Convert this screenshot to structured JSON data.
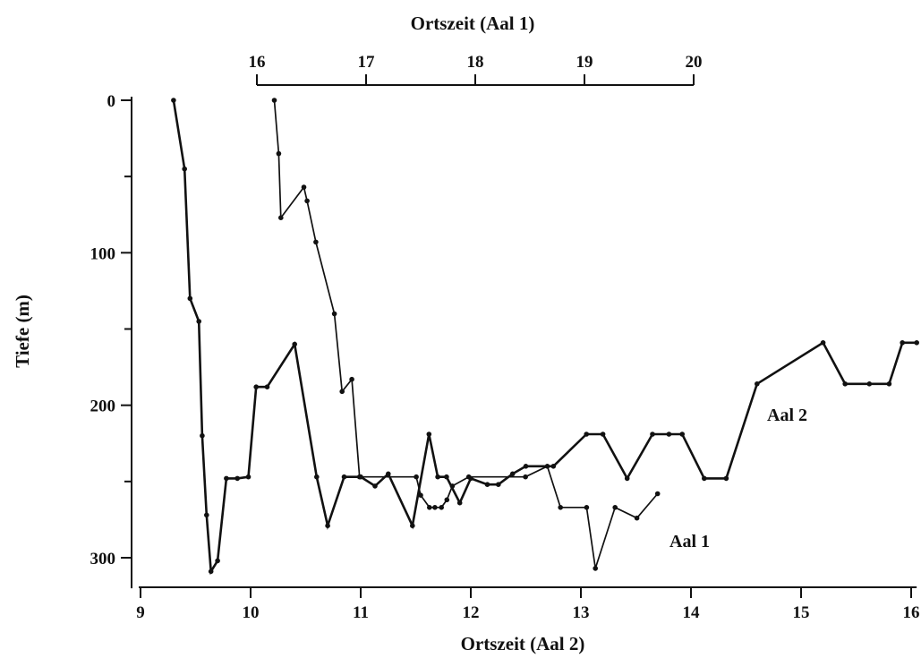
{
  "chart_data": {
    "type": "line",
    "title": "",
    "grid": false,
    "y_axis": {
      "label": "Tiefe (m)",
      "range": [
        0,
        320
      ],
      "inverted": true,
      "ticks": [
        0,
        100,
        200,
        300
      ],
      "tick_labels": [
        "0",
        "100",
        "200",
        "300"
      ]
    },
    "x_axis_bottom": {
      "label": "Ortszeit (Aal 2)",
      "range": [
        9,
        16.05
      ],
      "ticks": [
        9,
        10,
        11,
        12,
        13,
        14,
        15,
        16
      ],
      "tick_labels": [
        "9",
        "10",
        "11",
        "12",
        "13",
        "14",
        "15",
        "16"
      ]
    },
    "x_axis_top": {
      "label": "Ortszeit (Aal 1)",
      "range": [
        16,
        20
      ],
      "ticks": [
        16,
        17,
        18,
        19,
        20
      ],
      "tick_labels": [
        "16",
        "17",
        "18",
        "19",
        "20"
      ]
    },
    "series": [
      {
        "name": "Aal 1",
        "axis": "top",
        "points": [
          [
            16.16,
            0
          ],
          [
            16.2,
            35
          ],
          [
            16.22,
            77
          ],
          [
            16.43,
            57
          ],
          [
            16.46,
            66
          ],
          [
            16.54,
            93
          ],
          [
            16.71,
            140
          ],
          [
            16.78,
            191
          ],
          [
            16.87,
            183
          ],
          [
            16.94,
            247
          ],
          [
            17.46,
            247
          ],
          [
            17.5,
            259
          ],
          [
            17.58,
            267
          ],
          [
            17.63,
            267
          ],
          [
            17.69,
            267
          ],
          [
            17.74,
            262
          ],
          [
            17.79,
            253
          ],
          [
            17.94,
            247
          ],
          [
            18.46,
            247
          ],
          [
            18.66,
            240
          ],
          [
            18.78,
            267
          ],
          [
            19.02,
            267
          ],
          [
            19.1,
            307
          ],
          [
            19.28,
            267
          ],
          [
            19.48,
            274
          ],
          [
            19.67,
            258
          ]
        ]
      },
      {
        "name": "Aal 2",
        "axis": "bottom",
        "points": [
          [
            9.3,
            0
          ],
          [
            9.4,
            45
          ],
          [
            9.45,
            130
          ],
          [
            9.53,
            145
          ],
          [
            9.56,
            220
          ],
          [
            9.6,
            272
          ],
          [
            9.64,
            309
          ],
          [
            9.7,
            302
          ],
          [
            9.78,
            248
          ],
          [
            9.88,
            248
          ],
          [
            9.98,
            247
          ],
          [
            10.05,
            188
          ],
          [
            10.15,
            188
          ],
          [
            10.4,
            160
          ],
          [
            10.6,
            247
          ],
          [
            10.7,
            279
          ],
          [
            10.85,
            247
          ],
          [
            11.0,
            247
          ],
          [
            11.13,
            253
          ],
          [
            11.25,
            245
          ],
          [
            11.47,
            279
          ],
          [
            11.62,
            219
          ],
          [
            11.7,
            247
          ],
          [
            11.78,
            247
          ],
          [
            11.9,
            264
          ],
          [
            12.0,
            248
          ],
          [
            12.15,
            252
          ],
          [
            12.25,
            252
          ],
          [
            12.38,
            245
          ],
          [
            12.5,
            240
          ],
          [
            12.75,
            240
          ],
          [
            13.05,
            219
          ],
          [
            13.2,
            219
          ],
          [
            13.42,
            248
          ],
          [
            13.65,
            219
          ],
          [
            13.8,
            219
          ],
          [
            13.92,
            219
          ],
          [
            14.12,
            248
          ],
          [
            14.32,
            248
          ],
          [
            14.6,
            186
          ],
          [
            15.2,
            159
          ],
          [
            15.4,
            186
          ],
          [
            15.62,
            186
          ],
          [
            15.8,
            186
          ],
          [
            15.92,
            159
          ],
          [
            16.05,
            159
          ]
        ]
      }
    ]
  }
}
